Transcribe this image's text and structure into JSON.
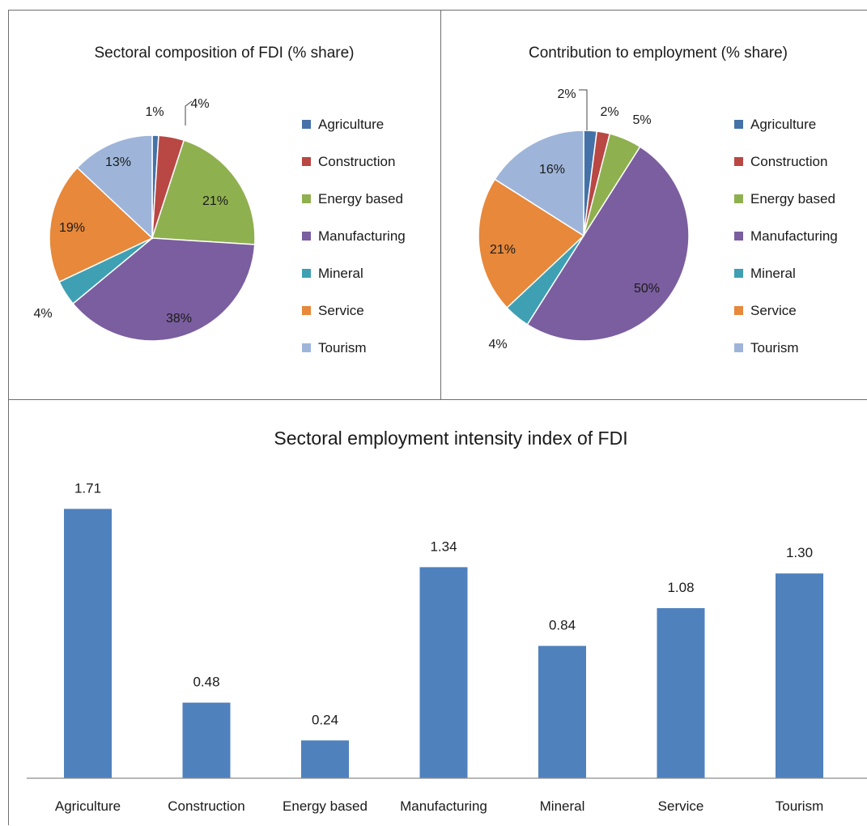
{
  "colors": {
    "Agriculture": "#4472a8",
    "Construction": "#b94744",
    "Energy based": "#8fb04f",
    "Manufacturing": "#7b5e9f",
    "Mineral": "#3fa0b4",
    "Service": "#e7883a",
    "Tourism": "#9eb5d9",
    "bar": "#4f81bd"
  },
  "chart_data": [
    {
      "type": "pie",
      "title": "Sectoral composition of FDI (% share)",
      "categories": [
        "Agriculture",
        "Construction",
        "Energy based",
        "Manufacturing",
        "Mineral",
        "Service",
        "Tourism"
      ],
      "values": [
        1,
        4,
        21,
        38,
        4,
        19,
        13
      ],
      "labels": [
        "1%",
        "4%",
        "21%",
        "38%",
        "4%",
        "19%",
        "13%"
      ],
      "legend": "right"
    },
    {
      "type": "pie",
      "title": "Contribution to employment (% share)",
      "categories": [
        "Agriculture",
        "Construction",
        "Energy based",
        "Manufacturing",
        "Mineral",
        "Service",
        "Tourism"
      ],
      "values": [
        2,
        2,
        5,
        50,
        4,
        21,
        16
      ],
      "labels": [
        "2%",
        "2%",
        "5%",
        "50%",
        "4%",
        "21%",
        "16%"
      ],
      "legend": "right"
    },
    {
      "type": "bar",
      "title": "Sectoral employment intensity index of FDI",
      "categories": [
        "Agriculture",
        "Construction",
        "Energy based",
        "Manufacturing",
        "Mineral",
        "Service",
        "Tourism"
      ],
      "values": [
        1.71,
        0.48,
        0.24,
        1.34,
        0.84,
        1.08,
        1.3
      ],
      "labels": [
        "1.71",
        "0.48",
        "0.24",
        "1.34",
        "0.84",
        "1.08",
        "1.30"
      ],
      "ylim": [
        0,
        2
      ],
      "grid": false,
      "legend": "none"
    }
  ]
}
